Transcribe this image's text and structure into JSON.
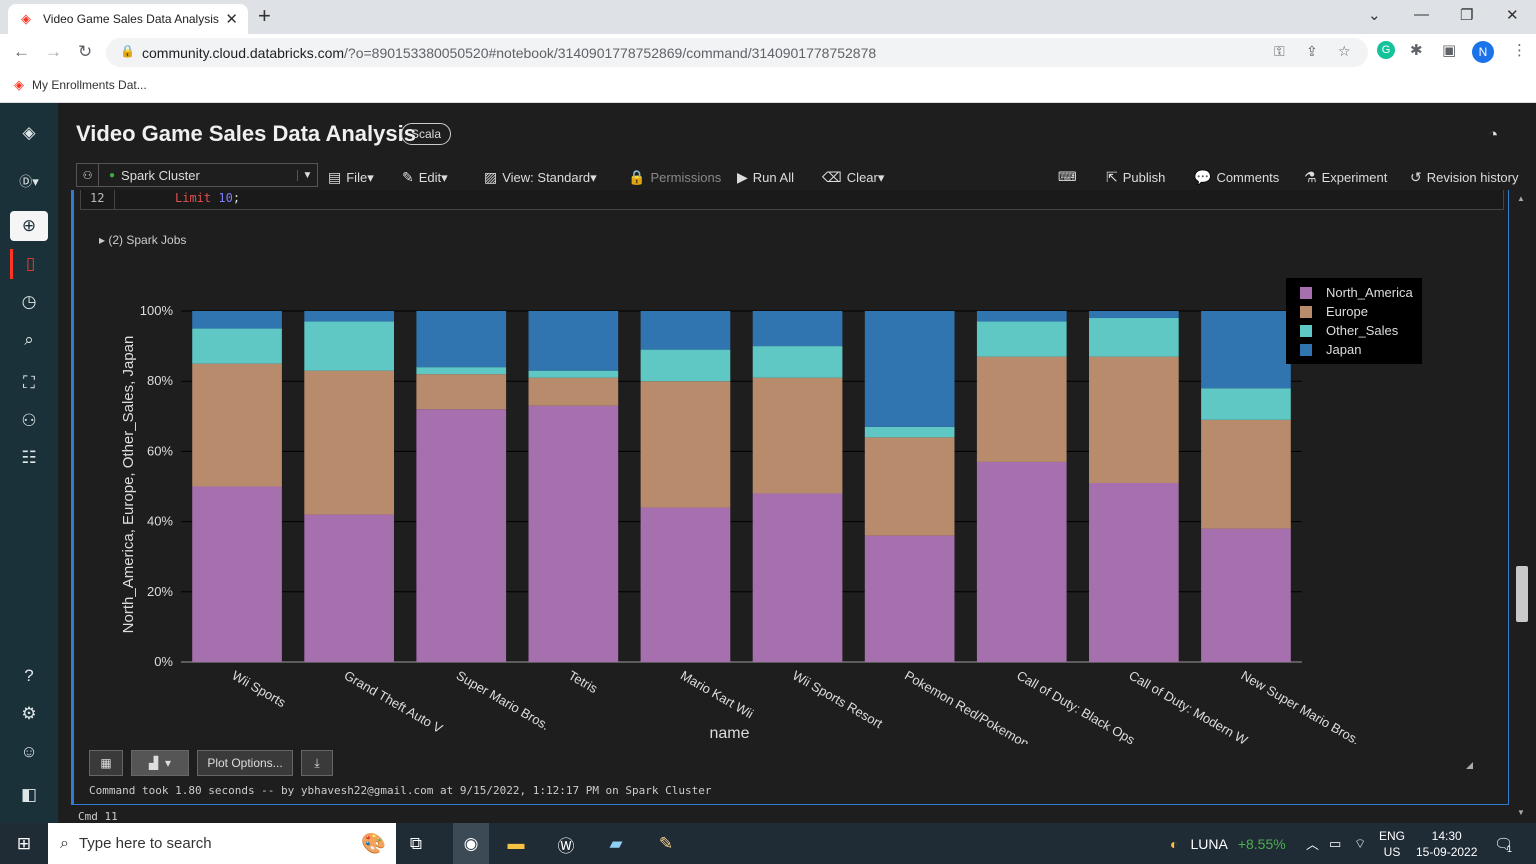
{
  "browser": {
    "tab_title": "Video Game Sales Data Analysis",
    "new_tab": "+",
    "url_host": "community.cloud.databricks.com",
    "url_path": "/?o=890153380050520#notebook/3140901778752869/command/3140901778752878",
    "bookmark": "My Enrollments Dat...",
    "profile_initial": "N"
  },
  "notebook": {
    "title": "Video Game Sales Data Analysis",
    "language": "Scala",
    "cluster": "Spark Cluster",
    "toolbar": {
      "file": "File",
      "edit": "Edit",
      "view": "View: Standard",
      "permissions": "Permissions",
      "run_all": "Run All",
      "clear": "Clear",
      "publish": "Publish",
      "comments": "Comments",
      "experiment": "Experiment",
      "revision_history": "Revision history"
    }
  },
  "cell": {
    "line_number": "12",
    "code_keyword": "Limit",
    "code_value": "10",
    "code_punct": ";",
    "spark_jobs": "(2) Spark Jobs",
    "plot_options": "Plot Options...",
    "command_took": "Command took 1.80 seconds -- by ybhavesh22@gmail.com at 9/15/2022, 1:12:17 PM on Spark Cluster",
    "next_cmd": "Cmd 11"
  },
  "chart_data": {
    "type": "bar",
    "stacked": "percent",
    "xlabel": "name",
    "ylabel": "North_America, Europe, Other_Sales, Japan",
    "ylim": [
      0,
      100
    ],
    "yticks": [
      "0%",
      "20%",
      "40%",
      "60%",
      "80%",
      "100%"
    ],
    "legend_position": "top-right",
    "categories": [
      "Wii Sports",
      "Grand Theft Auto V",
      "Super Mario Bros.",
      "Tetris",
      "Mario Kart Wii",
      "Wii Sports Resort",
      "Pokemon Red/Pokemon ...",
      "Call of Duty: Black Ops",
      "Call of Duty: Modern W...",
      "New Super Mario Bros."
    ],
    "series": [
      {
        "name": "North_America",
        "color": "#a66fad",
        "values": [
          50,
          42,
          72,
          73,
          44,
          48,
          36,
          57,
          51,
          38
        ]
      },
      {
        "name": "Europe",
        "color": "#b98b6d",
        "values": [
          35,
          41,
          10,
          8,
          36,
          33,
          28,
          30,
          36,
          31
        ]
      },
      {
        "name": "Other_Sales",
        "color": "#5fc7c4",
        "values": [
          10,
          14,
          2,
          2,
          9,
          9,
          3,
          10,
          11,
          9
        ]
      },
      {
        "name": "Japan",
        "color": "#3175b0",
        "values": [
          5,
          3,
          16,
          17,
          11,
          10,
          33,
          3,
          2,
          22
        ]
      }
    ]
  },
  "taskbar": {
    "search_placeholder": "Type here to search",
    "ticker": "LUNA",
    "ticker_change": "+8.55%",
    "lang1": "ENG",
    "lang2": "US",
    "time": "14:30",
    "date": "15-09-2022",
    "notif_count": "1"
  }
}
